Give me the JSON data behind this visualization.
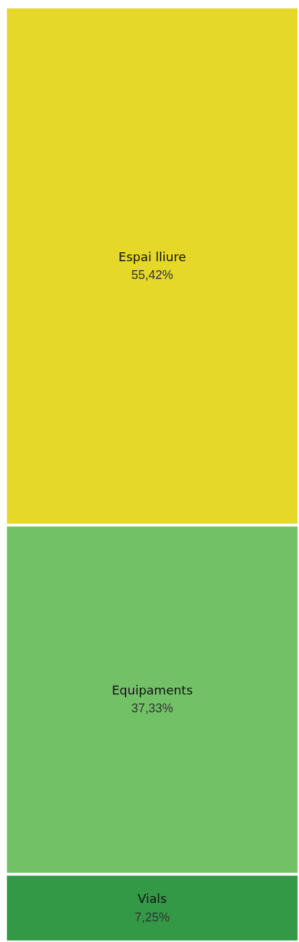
{
  "chart_data": {
    "type": "other",
    "categories": [
      "Espai lliure",
      "Equipaments",
      "Vials"
    ],
    "values": [
      55.42,
      37.33,
      7.25
    ],
    "colors": [
      "#e5d829",
      "#72c167",
      "#339946"
    ],
    "value_labels": [
      "55,42%",
      "37,33%",
      "7,25%"
    ]
  }
}
